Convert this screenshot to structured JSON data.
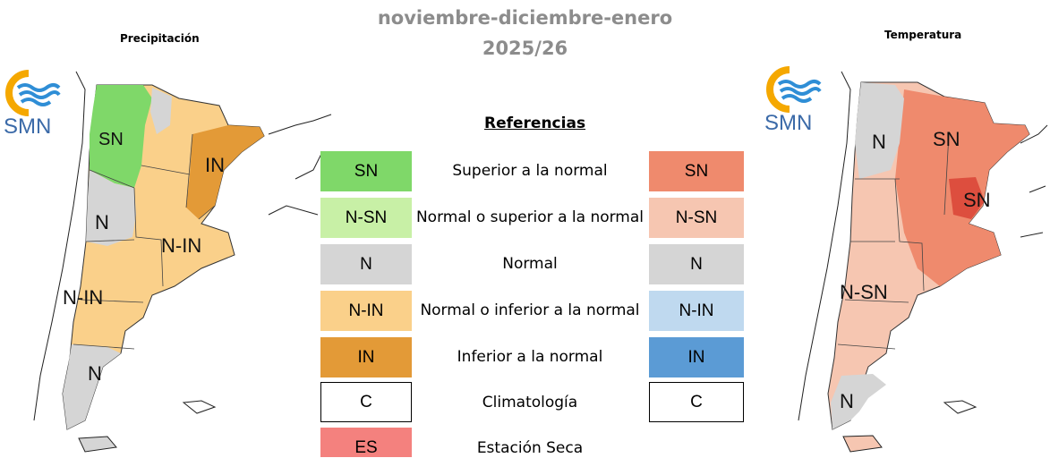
{
  "header": {
    "title_line1": "noviembre-diciembre-enero",
    "title_line2": "2025/26"
  },
  "left_panel": {
    "title": "Precipitación",
    "logo_text": "SMN",
    "regions": [
      "SN",
      "IN",
      "N",
      "N-IN",
      "N-IN",
      "N"
    ]
  },
  "right_panel": {
    "title": "Temperatura",
    "logo_text": "SMN",
    "regions": [
      "N",
      "SN",
      "SN",
      "N-SN",
      "N"
    ]
  },
  "legend": {
    "title": "Referencias",
    "rows": [
      {
        "code": "SN",
        "desc": "Superior a la normal",
        "precip_color": "#7fd869",
        "temp_code": "SN",
        "temp_color": "#ef8a6d"
      },
      {
        "code": "N-SN",
        "desc": "Normal o superior a la normal",
        "precip_color": "#c8f0a6",
        "temp_code": "N-SN",
        "temp_color": "#f6c6b1"
      },
      {
        "code": "N",
        "desc": "Normal",
        "precip_color": "#d5d5d5",
        "temp_code": "N",
        "temp_color": "#d5d5d5"
      },
      {
        "code": "N-IN",
        "desc": "Normal o inferior a la normal",
        "precip_color": "#fad08a",
        "temp_code": "N-IN",
        "temp_color": "#bfd9ef"
      },
      {
        "code": "IN",
        "desc": "Inferior a la normal",
        "precip_color": "#e39a37",
        "temp_code": "IN",
        "temp_color": "#5b9bd5"
      },
      {
        "code": "C",
        "desc": "Climatología",
        "precip_color": "#ffffff",
        "temp_code": "C",
        "temp_color": "#ffffff"
      },
      {
        "code": "ES",
        "desc": "Estación Seca",
        "precip_color": "#f4817e"
      }
    ]
  }
}
